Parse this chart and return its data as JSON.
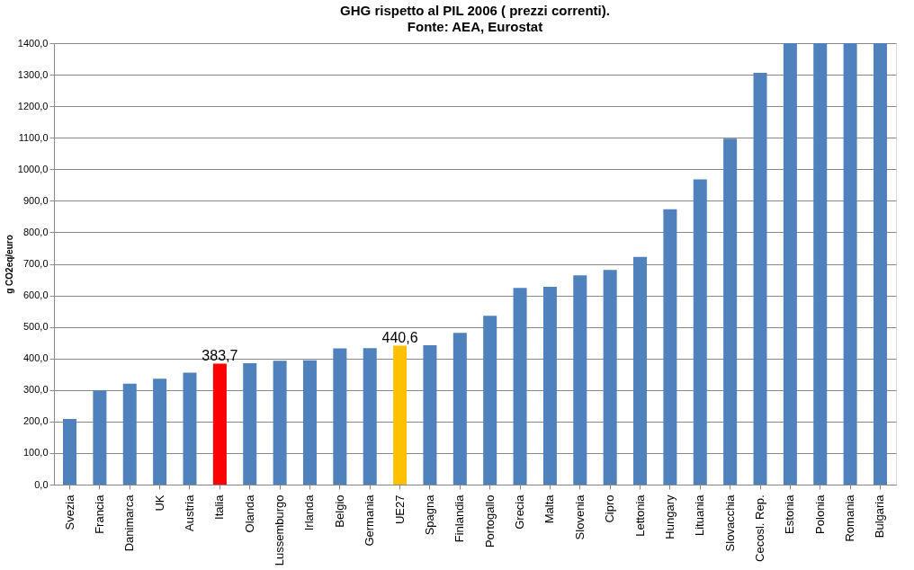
{
  "chart_data": {
    "type": "bar",
    "title": "GHG rispetto al PIL 2006 ( prezzi correnti).",
    "subtitle": "Fonte: AEA, Eurostat",
    "ylabel": "g CO2eq/euro",
    "categories": [
      "Svezia",
      "Francia",
      "Danimarca",
      "UK",
      "Austria",
      "Italia",
      "Olanda",
      "Lussemburgo",
      "Irlanda",
      "Belgio",
      "Germania",
      "UE27",
      "Spagna",
      "Finlandia",
      "Portogallo",
      "Grecia",
      "Malta",
      "Slovenia",
      "Cipro",
      "Lettonia",
      "Hungary",
      "Lituania",
      "Slovacchia",
      "Cecosl. Rep.",
      "Estonia",
      "Polonia",
      "Romania",
      "Bulgaria"
    ],
    "values": [
      208,
      299,
      320,
      336,
      355,
      383.7,
      385,
      393,
      394,
      432,
      433,
      440.6,
      442,
      481,
      535,
      624,
      627,
      664,
      681,
      722,
      873,
      968,
      1097,
      1306,
      1400,
      1400,
      1400,
      1400
    ],
    "colors": [
      "#4f81bd",
      "#4f81bd",
      "#4f81bd",
      "#4f81bd",
      "#4f81bd",
      "#ff0000",
      "#4f81bd",
      "#4f81bd",
      "#4f81bd",
      "#4f81bd",
      "#4f81bd",
      "#ffc000",
      "#4f81bd",
      "#4f81bd",
      "#4f81bd",
      "#4f81bd",
      "#4f81bd",
      "#4f81bd",
      "#4f81bd",
      "#4f81bd",
      "#4f81bd",
      "#4f81bd",
      "#4f81bd",
      "#4f81bd",
      "#4f81bd",
      "#4f81bd",
      "#4f81bd",
      "#4f81bd"
    ],
    "value_labels": [
      null,
      null,
      null,
      null,
      null,
      "383,7",
      null,
      null,
      null,
      null,
      null,
      "440,6",
      null,
      null,
      null,
      null,
      null,
      null,
      null,
      null,
      null,
      null,
      null,
      null,
      null,
      null,
      null,
      null
    ],
    "ylim": [
      0,
      1400
    ],
    "yticks": [
      {
        "value": 0,
        "label": "0,0"
      },
      {
        "value": 100,
        "label": "100,0"
      },
      {
        "value": 200,
        "label": "200,0"
      },
      {
        "value": 300,
        "label": "300,0"
      },
      {
        "value": 400,
        "label": "400,0"
      },
      {
        "value": 500,
        "label": "500,0"
      },
      {
        "value": 600,
        "label": "600,0"
      },
      {
        "value": 700,
        "label": "700,0"
      },
      {
        "value": 800,
        "label": "800,0"
      },
      {
        "value": 900,
        "label": "900,0"
      },
      {
        "value": 1000,
        "label": "1000,0"
      },
      {
        "value": 1100,
        "label": "1100,0"
      },
      {
        "value": 1200,
        "label": "1200,0"
      },
      {
        "value": 1300,
        "label": "1300,0"
      },
      {
        "value": 1400,
        "label": "1400,0"
      }
    ],
    "grid": "y"
  }
}
